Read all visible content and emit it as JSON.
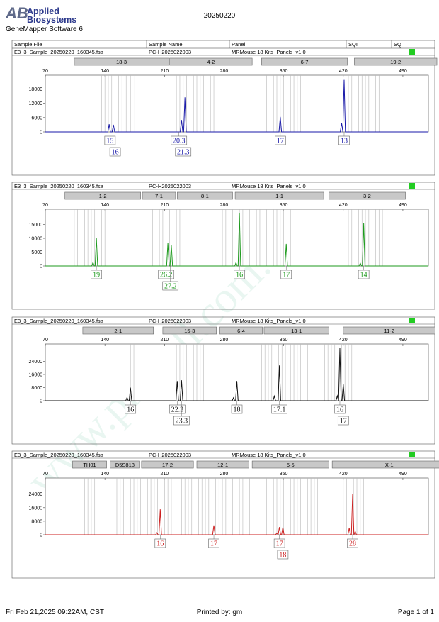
{
  "header": {
    "logo_text_line1": "Applied",
    "logo_text_line2": "Biosystems",
    "software": "GeneMapper Software 6",
    "date": "20250220"
  },
  "columns": [
    "Sample File",
    "Sample Name",
    "Panel",
    "SQI",
    "SQ"
  ],
  "watermark": "www.procell.com.cn",
  "colors": {
    "blue": "#1a1aa8",
    "green": "#1e9a1e",
    "black": "#111111",
    "red": "#cc1f1f",
    "sq_ok": "#22cc22",
    "bin_line": "#b8b8b8",
    "marker_box": "#c8c8c8"
  },
  "footer": {
    "left": "Fri Feb 21,2025 09:22AM, CST",
    "center": "Printed by: gm",
    "right": "Page 1 of 1"
  },
  "chart_data": [
    {
      "type": "line",
      "sample_file": "E3_3_Sample_20250220_160345.fsa",
      "sample_name": "PC-H2025022003",
      "panel": "MRMouse 18 Kits_Panels_v1.0",
      "color": "#1a1aa8",
      "xlim": [
        70,
        520
      ],
      "xticks": [
        70,
        140,
        210,
        280,
        350,
        420,
        490
      ],
      "ylim": [
        0,
        22000
      ],
      "yticks": [
        0,
        6000,
        12000,
        18000
      ],
      "markers": [
        {
          "name": "18-3",
          "range": [
            104,
            215
          ]
        },
        {
          "name": "4-2",
          "range": [
            216,
            313
          ]
        },
        {
          "name": "6-7",
          "range": [
            324,
            425
          ]
        },
        {
          "name": "19-2",
          "range": [
            433,
            530
          ]
        }
      ],
      "bins": [
        136,
        140,
        144,
        148,
        152,
        156,
        160,
        165,
        170,
        175,
        224,
        228,
        232,
        236,
        240,
        244,
        248,
        252,
        256,
        260,
        264,
        268,
        330,
        334,
        338,
        342,
        346,
        350,
        354,
        358,
        362,
        366,
        370,
        426,
        430,
        434,
        438,
        442,
        446,
        450,
        454,
        458,
        462
      ],
      "peaks": [
        {
          "x": 145,
          "y": 3200
        },
        {
          "x": 150,
          "y": 3000
        },
        {
          "x": 230,
          "y": 5000
        },
        {
          "x": 234,
          "y": 14500
        },
        {
          "x": 346,
          "y": 6300
        },
        {
          "x": 418,
          "y": 3800
        },
        {
          "x": 421,
          "y": 21800
        }
      ],
      "calls": [
        {
          "label": "15",
          "x": 146,
          "row": 0
        },
        {
          "label": "16",
          "x": 152,
          "row": 1
        },
        {
          "label": "20.3",
          "x": 227,
          "row": 0
        },
        {
          "label": "21.3",
          "x": 232,
          "row": 1
        },
        {
          "label": "17",
          "x": 346,
          "row": 0
        },
        {
          "label": "13",
          "x": 421,
          "row": 0
        }
      ]
    },
    {
      "type": "line",
      "sample_file": "E3_3_Sample_20250220_160345.fsa",
      "sample_name": "PC-H2025022003",
      "panel": "MRMouse 18 Kits_Panels_v1.0",
      "color": "#1e9a1e",
      "xlim": [
        70,
        520
      ],
      "xticks": [
        70,
        140,
        210,
        280,
        350,
        420,
        490
      ],
      "ylim": [
        0,
        19000
      ],
      "yticks": [
        0,
        5000,
        10000,
        15000
      ],
      "markers": [
        {
          "name": "1-2",
          "range": [
            93,
            182
          ]
        },
        {
          "name": "7-1",
          "range": [
            184,
            223
          ]
        },
        {
          "name": "8-1",
          "range": [
            225,
            290
          ]
        },
        {
          "name": "1-1",
          "range": [
            293,
            397
          ]
        },
        {
          "name": "3-2",
          "range": [
            403,
            493
          ]
        }
      ],
      "bins": [
        104,
        108,
        112,
        116,
        120,
        124,
        128,
        132,
        136,
        140,
        196,
        200,
        204,
        208,
        212,
        216,
        220,
        224,
        228,
        278,
        282,
        286,
        290,
        294,
        298,
        302,
        306,
        310,
        314,
        318,
        322,
        330,
        334,
        338,
        342,
        346,
        350,
        354,
        358,
        426,
        430,
        434,
        438,
        442,
        446,
        450,
        454,
        458,
        462,
        466
      ],
      "peaks": [
        {
          "x": 126,
          "y": 1300
        },
        {
          "x": 130,
          "y": 10000
        },
        {
          "x": 214,
          "y": 8300
        },
        {
          "x": 218,
          "y": 7500
        },
        {
          "x": 294,
          "y": 1200
        },
        {
          "x": 298,
          "y": 19000
        },
        {
          "x": 353,
          "y": 8000
        },
        {
          "x": 440,
          "y": 1000
        },
        {
          "x": 444,
          "y": 15500
        }
      ],
      "calls": [
        {
          "label": "19",
          "x": 130,
          "row": 0
        },
        {
          "label": "26.2",
          "x": 212,
          "row": 0
        },
        {
          "label": "27.2",
          "x": 217,
          "row": 1
        },
        {
          "label": "16",
          "x": 298,
          "row": 0
        },
        {
          "label": "17",
          "x": 353,
          "row": 0
        },
        {
          "label": "14",
          "x": 444,
          "row": 0
        }
      ]
    },
    {
      "type": "line",
      "sample_file": "E3_3_Sample_20250220_160345.fsa",
      "sample_name": "PC-H2025022003",
      "panel": "MRMouse 18 Kits_Panels_v1.0",
      "color": "#111111",
      "xlim": [
        70,
        520
      ],
      "xticks": [
        70,
        140,
        210,
        280,
        350,
        420,
        490
      ],
      "ylim": [
        0,
        32000
      ],
      "yticks": [
        0,
        8000,
        16000,
        24000
      ],
      "markers": [
        {
          "name": "2-1",
          "range": [
            114,
            197
          ]
        },
        {
          "name": "15-3",
          "range": [
            208,
            271
          ]
        },
        {
          "name": "6-4",
          "range": [
            275,
            325
          ]
        },
        {
          "name": "13-1",
          "range": [
            327,
            403
          ]
        },
        {
          "name": "11-2",
          "range": [
            420,
            528
          ]
        }
      ],
      "bins": [
        170,
        174,
        220,
        224,
        228,
        232,
        236,
        240,
        244,
        248,
        252,
        256,
        260,
        320,
        324,
        328,
        332,
        336,
        340,
        344,
        348,
        352,
        358,
        362,
        366,
        370,
        374,
        378,
        398,
        402,
        406,
        410,
        414,
        418,
        422,
        426,
        430,
        434
      ],
      "peaks": [
        {
          "x": 166,
          "y": 2000
        },
        {
          "x": 170,
          "y": 8000
        },
        {
          "x": 225,
          "y": 12000
        },
        {
          "x": 230,
          "y": 12500
        },
        {
          "x": 291,
          "y": 1800
        },
        {
          "x": 295,
          "y": 12000
        },
        {
          "x": 339,
          "y": 2800
        },
        {
          "x": 345,
          "y": 21500
        },
        {
          "x": 413,
          "y": 3000
        },
        {
          "x": 416,
          "y": 32000
        },
        {
          "x": 420,
          "y": 10000
        }
      ],
      "calls": [
        {
          "label": "16",
          "x": 170,
          "row": 0
        },
        {
          "label": "22.3",
          "x": 225,
          "row": 0
        },
        {
          "label": "23.3",
          "x": 230,
          "row": 1
        },
        {
          "label": "18",
          "x": 295,
          "row": 0
        },
        {
          "label": "17.1",
          "x": 345,
          "row": 0
        },
        {
          "label": "16",
          "x": 416,
          "row": 0
        },
        {
          "label": "17",
          "x": 420,
          "row": 1
        }
      ]
    },
    {
      "type": "line",
      "sample_file": "E3_3_Sample_20250220_160345.fsa",
      "sample_name": "PC-H2025022003",
      "panel": "MRMouse 18 Kits_Panels_v1.0",
      "color": "#cc1f1f",
      "xlim": [
        70,
        520
      ],
      "xticks": [
        70,
        140,
        210,
        280,
        350,
        420,
        490
      ],
      "ylim": [
        0,
        31000
      ],
      "yticks": [
        0,
        8000,
        16000,
        24000
      ],
      "markers": [
        {
          "name": "TH01",
          "range": [
            102,
            142
          ]
        },
        {
          "name": "D5S818",
          "range": [
            146,
            181
          ]
        },
        {
          "name": "17-2",
          "range": [
            183,
            244
          ]
        },
        {
          "name": "12-1",
          "range": [
            248,
            309
          ]
        },
        {
          "name": "5-5",
          "range": [
            313,
            403
          ]
        },
        {
          "name": "X-1",
          "range": [
            407,
            541
          ]
        }
      ],
      "bins": [
        116,
        120,
        124,
        128,
        132,
        154,
        158,
        162,
        166,
        170,
        174,
        178,
        182,
        186,
        190,
        194,
        198,
        202,
        206,
        210,
        214,
        218,
        226,
        230,
        234,
        238,
        242,
        246,
        250,
        254,
        258,
        262,
        266,
        270,
        274,
        278,
        282,
        286,
        290,
        294,
        298,
        302,
        306,
        310,
        330,
        334,
        338,
        342,
        346,
        350,
        354,
        358,
        362,
        366,
        370,
        374,
        378,
        382,
        386,
        390,
        394,
        420,
        424,
        428,
        432,
        436,
        440,
        444,
        448
      ],
      "peaks": [
        {
          "x": 201,
          "y": 1200
        },
        {
          "x": 205,
          "y": 15000
        },
        {
          "x": 268,
          "y": 5500
        },
        {
          "x": 342,
          "y": 1000
        },
        {
          "x": 345,
          "y": 4500
        },
        {
          "x": 349,
          "y": 4300
        },
        {
          "x": 427,
          "y": 4000
        },
        {
          "x": 431,
          "y": 24000
        },
        {
          "x": 434,
          "y": 2000
        }
      ],
      "calls": [
        {
          "label": "16",
          "x": 205,
          "row": 0
        },
        {
          "label": "17",
          "x": 268,
          "row": 0
        },
        {
          "label": "17",
          "x": 345,
          "row": 0
        },
        {
          "label": "18",
          "x": 349,
          "row": 1
        },
        {
          "label": "28",
          "x": 431,
          "row": 0
        }
      ]
    }
  ]
}
